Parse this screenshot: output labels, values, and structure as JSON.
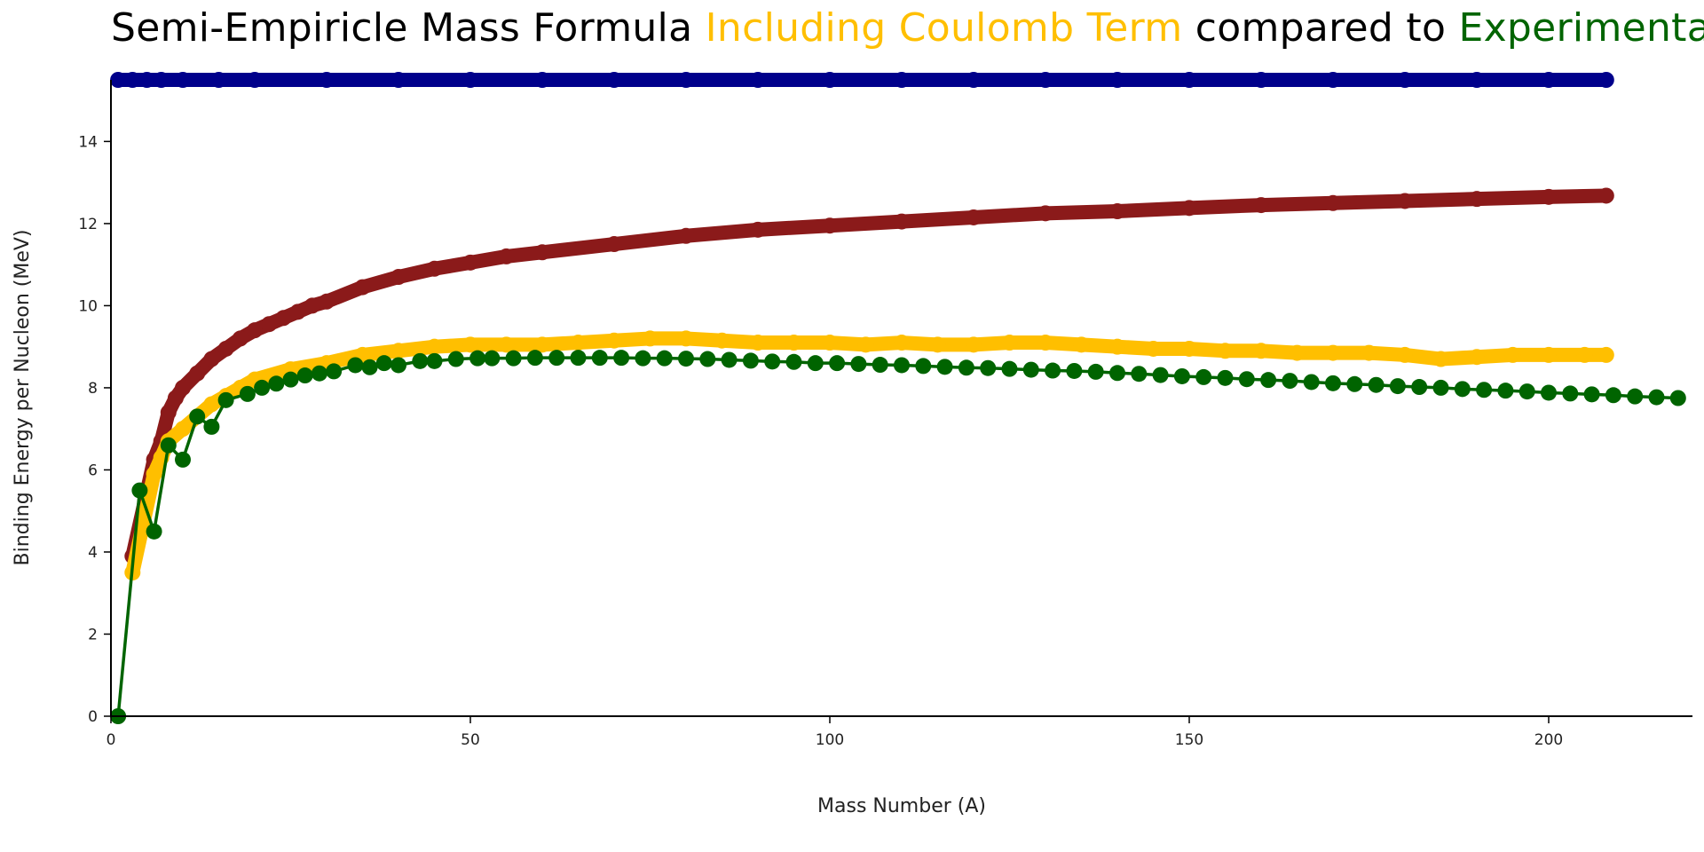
{
  "chart_data": {
    "type": "scatter",
    "title": [
      {
        "text": "Semi-Empiricle Mass Formula ",
        "color": "#000000"
      },
      {
        "text": "Including Coulomb Term",
        "color": "#ffbf00"
      },
      {
        "text": " compared to ",
        "color": "#000000"
      },
      {
        "text": "Experimental",
        "color": "#006400"
      }
    ],
    "xlabel": "Mass Number (A)",
    "ylabel": "Binding Energy per Nucleon (MeV)",
    "xlim": [
      0,
      220
    ],
    "ylim": [
      0,
      15.5
    ],
    "xticks": [
      "0",
      "50",
      "100",
      "150",
      "200"
    ],
    "yticks": [
      "0",
      "2",
      "4",
      "6",
      "8",
      "10",
      "12",
      "14"
    ],
    "grid": false,
    "series": [
      {
        "color": "#00008b",
        "style": "markers",
        "x": [
          1,
          3,
          5,
          7,
          10,
          15,
          20,
          30,
          40,
          50,
          60,
          70,
          80,
          90,
          100,
          110,
          120,
          130,
          140,
          150,
          160,
          170,
          180,
          190,
          200,
          208
        ],
        "y": [
          15.5,
          15.5,
          15.5,
          15.5,
          15.5,
          15.5,
          15.5,
          15.5,
          15.5,
          15.5,
          15.5,
          15.5,
          15.5,
          15.5,
          15.5,
          15.5,
          15.5,
          15.5,
          15.5,
          15.5,
          15.5,
          15.5,
          15.5,
          15.5,
          15.5,
          15.5
        ]
      },
      {
        "color": "#8b1a1a",
        "style": "markers",
        "x": [
          3,
          6,
          7,
          8,
          9,
          10,
          12,
          14,
          16,
          18,
          20,
          22,
          24,
          26,
          28,
          30,
          35,
          40,
          45,
          50,
          55,
          60,
          70,
          80,
          90,
          100,
          110,
          120,
          130,
          140,
          150,
          160,
          170,
          180,
          190,
          200,
          208
        ],
        "y": [
          3.9,
          6.25,
          6.7,
          7.4,
          7.75,
          8.0,
          8.35,
          8.7,
          8.95,
          9.2,
          9.4,
          9.55,
          9.7,
          9.85,
          10.0,
          10.1,
          10.45,
          10.7,
          10.9,
          11.05,
          11.2,
          11.3,
          11.5,
          11.7,
          11.85,
          11.95,
          12.05,
          12.15,
          12.25,
          12.3,
          12.38,
          12.45,
          12.5,
          12.55,
          12.6,
          12.65,
          12.68
        ]
      },
      {
        "color": "#ffbf00",
        "style": "markers",
        "x": [
          3,
          6,
          7,
          8,
          10,
          12,
          14,
          16,
          18,
          20,
          25,
          30,
          35,
          40,
          45,
          50,
          55,
          60,
          65,
          70,
          75,
          80,
          85,
          90,
          95,
          100,
          105,
          110,
          115,
          120,
          125,
          130,
          135,
          140,
          145,
          150,
          155,
          160,
          165,
          170,
          175,
          180,
          185,
          190,
          195,
          200,
          205,
          208
        ],
        "y": [
          3.5,
          5.9,
          6.3,
          6.7,
          7.0,
          7.3,
          7.6,
          7.8,
          8.0,
          8.2,
          8.45,
          8.6,
          8.8,
          8.9,
          9.0,
          9.05,
          9.05,
          9.05,
          9.1,
          9.15,
          9.2,
          9.2,
          9.15,
          9.1,
          9.1,
          9.1,
          9.05,
          9.1,
          9.05,
          9.05,
          9.1,
          9.1,
          9.05,
          9.0,
          8.95,
          8.95,
          8.9,
          8.9,
          8.85,
          8.85,
          8.85,
          8.8,
          8.7,
          8.75,
          8.8,
          8.8,
          8.8,
          8.8
        ]
      },
      {
        "color": "#006400",
        "style": "line+markers",
        "x": [
          1,
          4,
          6,
          8,
          10,
          12,
          14,
          16,
          19,
          21,
          23,
          25,
          27,
          29,
          31,
          34,
          36,
          38,
          40,
          43,
          45,
          48,
          51,
          53,
          56,
          59,
          62,
          65,
          68,
          71,
          74,
          77,
          80,
          83,
          86,
          89,
          92,
          95,
          98,
          101,
          104,
          107,
          110,
          113,
          116,
          119,
          122,
          125,
          128,
          131,
          134,
          137,
          140,
          143,
          146,
          149,
          152,
          155,
          158,
          161,
          164,
          167,
          170,
          173,
          176,
          179,
          182,
          185,
          188,
          191,
          194,
          197,
          200,
          203,
          206,
          209,
          212,
          215,
          218
        ],
        "y": [
          0.0,
          5.5,
          4.5,
          6.6,
          6.25,
          7.3,
          7.05,
          7.7,
          7.85,
          8.0,
          8.1,
          8.2,
          8.3,
          8.35,
          8.4,
          8.55,
          8.5,
          8.6,
          8.55,
          8.65,
          8.65,
          8.7,
          8.72,
          8.72,
          8.72,
          8.73,
          8.73,
          8.73,
          8.73,
          8.73,
          8.72,
          8.72,
          8.71,
          8.7,
          8.68,
          8.66,
          8.64,
          8.63,
          8.6,
          8.6,
          8.58,
          8.56,
          8.55,
          8.53,
          8.51,
          8.49,
          8.48,
          8.46,
          8.44,
          8.42,
          8.41,
          8.39,
          8.36,
          8.34,
          8.31,
          8.28,
          8.26,
          8.24,
          8.21,
          8.19,
          8.17,
          8.14,
          8.11,
          8.09,
          8.07,
          8.04,
          8.02,
          8.0,
          7.97,
          7.95,
          7.93,
          7.91,
          7.88,
          7.86,
          7.84,
          7.82,
          7.79,
          7.77,
          7.75
        ]
      }
    ]
  }
}
